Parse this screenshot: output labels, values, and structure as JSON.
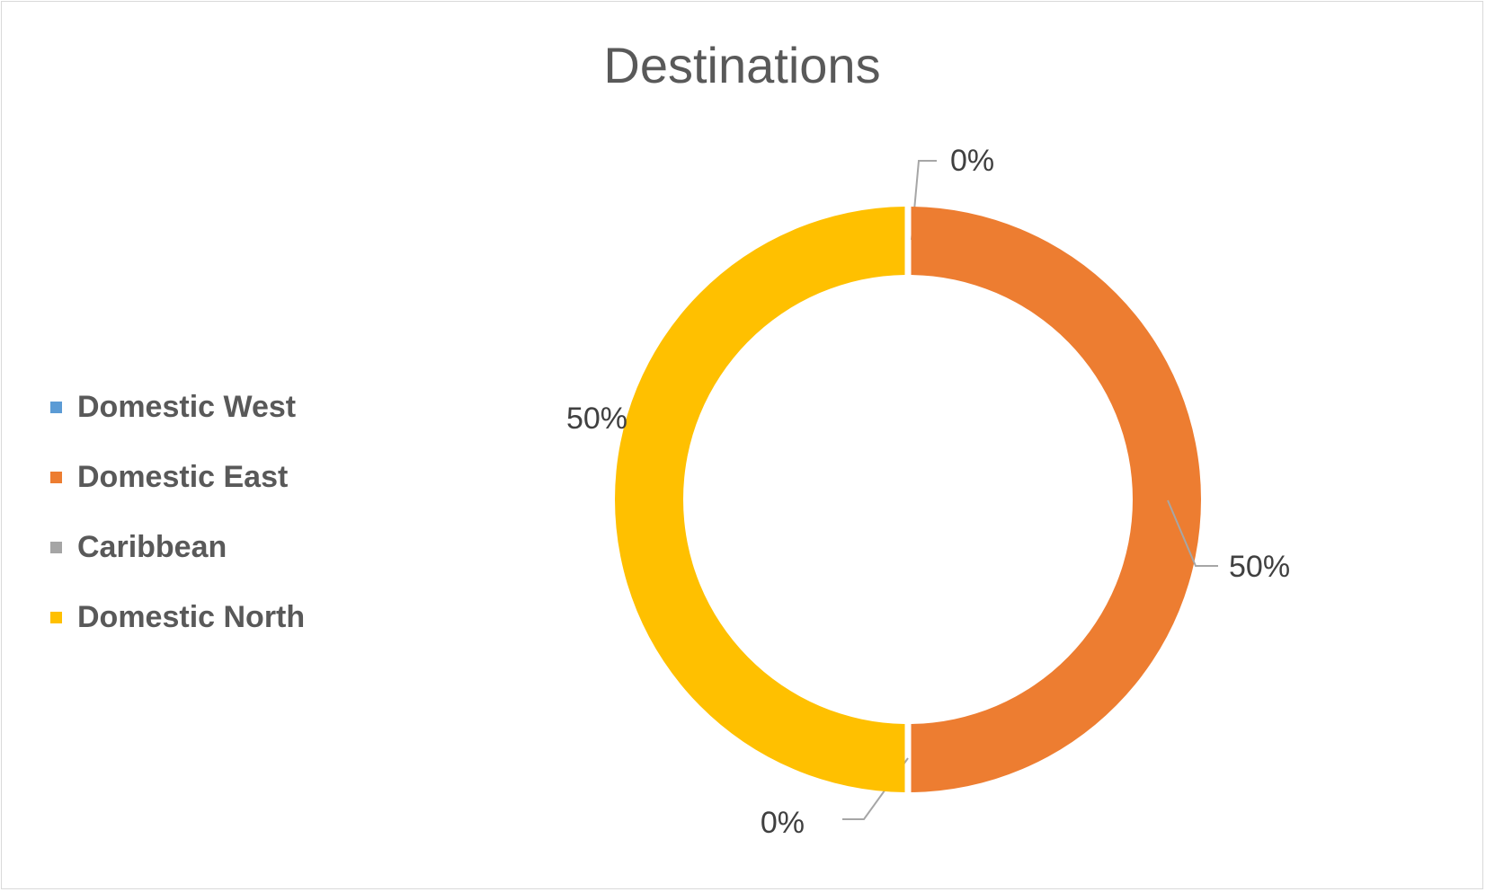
{
  "chart_data": {
    "type": "pie",
    "variant": "doughnut",
    "title": "Destinations",
    "legend_position": "left",
    "series": [
      {
        "name": "Domestic West",
        "value": 0,
        "label": "0%",
        "color": "#5b9bd5"
      },
      {
        "name": "Domestic East",
        "value": 50,
        "label": "50%",
        "color": "#ed7d31"
      },
      {
        "name": "Caribbean",
        "value": 0,
        "label": "0%",
        "color": "#a5a5a5"
      },
      {
        "name": "Domestic North",
        "value": 50,
        "label": "50%",
        "color": "#ffc000"
      }
    ]
  }
}
